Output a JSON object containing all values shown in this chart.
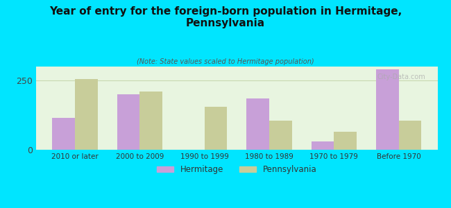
{
  "title": "Year of entry for the foreign-born population in Hermitage,\nPennsylvania",
  "subtitle": "(Note: State values scaled to Hermitage population)",
  "categories": [
    "2010 or later",
    "2000 to 2009",
    "1990 to 1999",
    "1980 to 1989",
    "1970 to 1979",
    "Before 1970"
  ],
  "hermitage_values": [
    115,
    200,
    0,
    185,
    30,
    290
  ],
  "pennsylvania_values": [
    255,
    210,
    155,
    105,
    65,
    105
  ],
  "hermitage_color": "#c8a0d8",
  "pennsylvania_color": "#c8cd9a",
  "background_color": "#00e5ff",
  "plot_bg_color_top": "#e8f5e0",
  "plot_bg_color_bottom": "#f0f8e8",
  "grid_color": "#c8d8b0",
  "bar_width": 0.35,
  "ylim": [
    0,
    300
  ],
  "yticks": [
    0,
    250
  ],
  "watermark": "City-Data.com",
  "legend_hermitage": "Hermitage",
  "legend_pennsylvania": "Pennsylvania"
}
